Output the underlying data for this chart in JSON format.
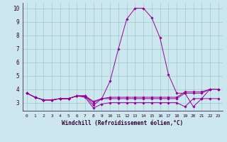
{
  "xlabel": "Windchill (Refroidissement éolien,°C)",
  "bg_color": "#cce8ee",
  "line_color": "#990099",
  "grid_color": "#99cccc",
  "xlim": [
    -0.5,
    23.5
  ],
  "ylim": [
    2.4,
    10.4
  ],
  "yticks": [
    3,
    4,
    5,
    6,
    7,
    8,
    9,
    10
  ],
  "xticks": [
    0,
    1,
    2,
    3,
    4,
    5,
    6,
    7,
    8,
    9,
    10,
    11,
    12,
    13,
    14,
    15,
    16,
    17,
    18,
    19,
    20,
    21,
    22,
    23
  ],
  "series": [
    [
      3.7,
      3.4,
      3.2,
      3.2,
      3.3,
      3.3,
      3.5,
      3.5,
      2.8,
      3.3,
      4.6,
      7.0,
      9.2,
      10.0,
      10.0,
      9.3,
      7.8,
      5.1,
      3.7,
      3.7,
      2.7,
      3.3,
      4.0,
      4.0
    ],
    [
      3.7,
      3.4,
      3.2,
      3.2,
      3.3,
      3.3,
      3.5,
      3.5,
      3.1,
      3.3,
      3.4,
      3.4,
      3.4,
      3.4,
      3.4,
      3.4,
      3.4,
      3.4,
      3.4,
      3.8,
      3.8,
      3.8,
      4.0,
      4.0
    ],
    [
      3.7,
      3.4,
      3.2,
      3.2,
      3.3,
      3.3,
      3.5,
      3.5,
      3.0,
      3.3,
      3.3,
      3.3,
      3.3,
      3.3,
      3.3,
      3.3,
      3.3,
      3.3,
      3.3,
      3.7,
      3.7,
      3.7,
      4.0,
      4.0
    ],
    [
      3.7,
      3.4,
      3.2,
      3.2,
      3.3,
      3.3,
      3.5,
      3.4,
      2.6,
      2.9,
      3.0,
      3.0,
      3.0,
      3.0,
      3.0,
      3.0,
      3.0,
      3.0,
      3.0,
      2.7,
      3.3,
      3.3,
      3.3,
      3.3
    ]
  ]
}
